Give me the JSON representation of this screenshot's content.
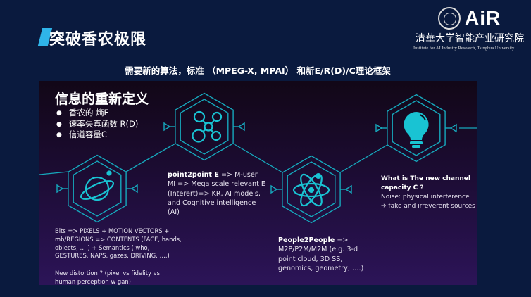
{
  "slide": {
    "title": "突破香农极限",
    "subtitle": "需要新的算法，标准 （MPEG-X, MPAI） 和新E/R(D)/C理论框架",
    "accent_color": "#2fb4e9",
    "icon_color": "#19c3d3"
  },
  "logo": {
    "name": "AiR",
    "cn": "清華大学智能产业研究院",
    "en": "Institute for AI Industry Research, Tsinghua University"
  },
  "definition": {
    "heading": "信息的重新定义",
    "items": [
      "香农的 熵E",
      "速率失真函数 R(D)",
      "信道容量C"
    ]
  },
  "nodes": {
    "planet": {
      "icon": "planet-icon",
      "text": "Bits => PIXELS + MOTION VECTORS + mb/REGIONS =>  CONTENTS (FACE, hands, objects, …  ) + Semantics ( who, GESTURES, NAPS, gazes, DRIVING, ….)",
      "note": "New distortion ?  (pixel vs fidelity vs human perception w gan)"
    },
    "network": {
      "icon": "network-icon",
      "title": "point2point  E",
      "text": " => M-user MI =>   Mega scale relevant E (Interert)=> KR, AI models,  and Cognitive intelligence (AI)"
    },
    "atom": {
      "icon": "atom-icon",
      "title": "People2People",
      "text": " => M2P/P2M/M2M   (e.g. 3-d point cloud, 3D SS, genomics, geometry, ….)"
    },
    "bulb": {
      "icon": "lightbulb-icon",
      "title": "What is The new channel capacity C ?",
      "text": "Noise:   physical interference",
      "arrow": "➔",
      "text2": " fake and irreverent sources"
    }
  }
}
